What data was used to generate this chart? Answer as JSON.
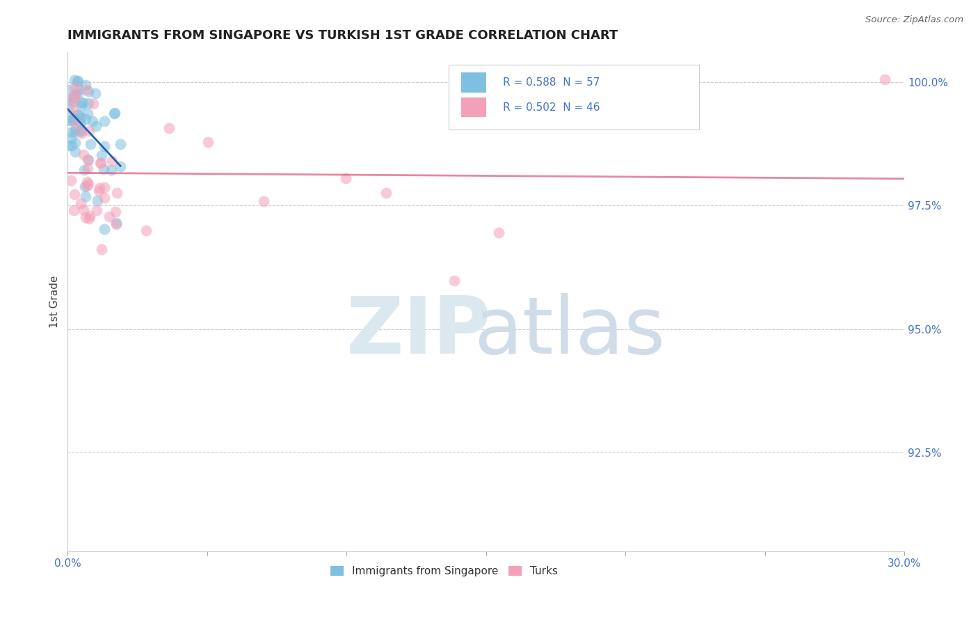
{
  "title": "IMMIGRANTS FROM SINGAPORE VS TURKISH 1ST GRADE CORRELATION CHART",
  "source": "Source: ZipAtlas.com",
  "ylabel": "1st Grade",
  "xlim": [
    0.0,
    0.3
  ],
  "ylim": [
    0.905,
    1.006
  ],
  "xtick_positions": [
    0.0,
    0.05,
    0.1,
    0.15,
    0.2,
    0.25,
    0.3
  ],
  "xtick_edge_labels": {
    "0": "0.0%",
    "6": "30.0%"
  },
  "yticks_right": [
    0.925,
    0.95,
    0.975,
    1.0
  ],
  "ytick_labels_right": [
    "92.5%",
    "95.0%",
    "97.5%",
    "100.0%"
  ],
  "singapore_R": 0.588,
  "singapore_N": 57,
  "turks_R": 0.502,
  "turks_N": 46,
  "singapore_color": "#7fbfdf",
  "turks_color": "#f4a0b8",
  "singapore_line_color": "#2060b0",
  "turks_line_color": "#e06080",
  "background_color": "#ffffff",
  "grid_color": "#cccccc",
  "legend_label_singapore": "Immigrants from Singapore",
  "legend_label_turks": "Turks",
  "title_color": "#222222",
  "right_tick_color": "#4472c4",
  "edge_label_color": "#4472c4"
}
